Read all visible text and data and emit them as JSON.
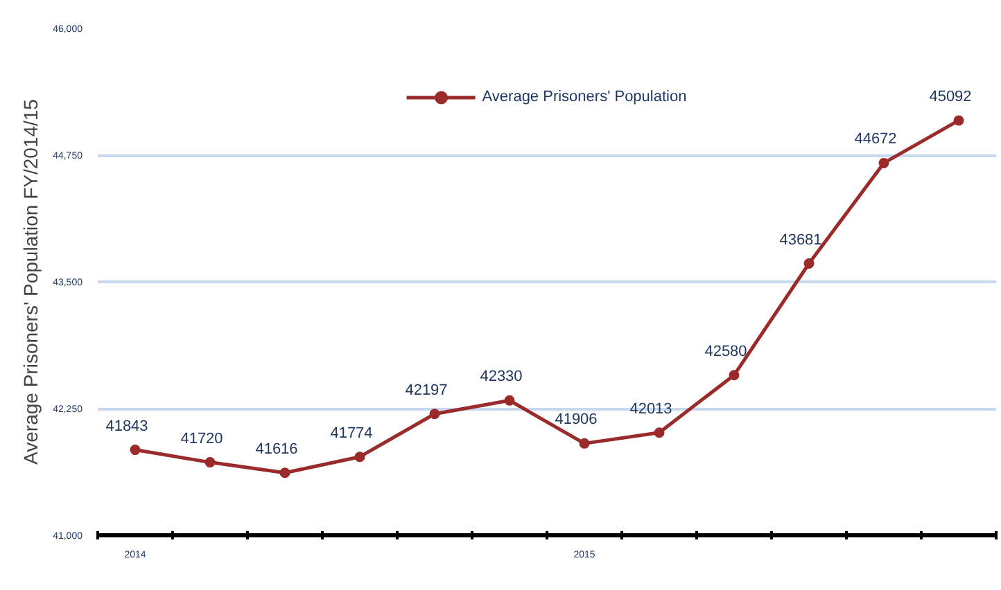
{
  "chart_data": {
    "type": "line",
    "ylabel": "Average Prisoners' Population FY/2014/15",
    "categories": [
      "2014",
      null,
      null,
      null,
      null,
      null,
      "2015",
      null,
      null,
      null,
      null,
      null
    ],
    "series": [
      {
        "name": "Average Prisoners' Population",
        "color": "#9b2a2a",
        "values": [
          41843,
          41720,
          41616,
          41774,
          42197,
          42330,
          41906,
          42013,
          42580,
          43681,
          44672,
          45092
        ]
      }
    ],
    "ylim": [
      41000,
      46000
    ],
    "yticks": [
      {
        "value": 41000,
        "label": "41,000"
      },
      {
        "value": 42250,
        "label": "42,250"
      },
      {
        "value": 43500,
        "label": "43,500"
      },
      {
        "value": 44750,
        "label": "44,750"
      },
      {
        "value": 46000,
        "label": "46,000"
      }
    ],
    "grid": "y",
    "legend": "top",
    "marker": "circle",
    "line_style": "solid",
    "data_labels": true
  }
}
